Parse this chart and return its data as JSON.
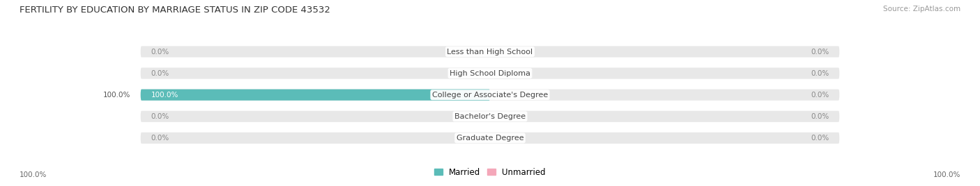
{
  "title": "FERTILITY BY EDUCATION BY MARRIAGE STATUS IN ZIP CODE 43532",
  "source": "Source: ZipAtlas.com",
  "categories": [
    "Less than High School",
    "High School Diploma",
    "College or Associate's Degree",
    "Bachelor's Degree",
    "Graduate Degree"
  ],
  "married_values": [
    0.0,
    0.0,
    100.0,
    0.0,
    0.0
  ],
  "unmarried_values": [
    0.0,
    0.0,
    0.0,
    0.0,
    0.0
  ],
  "married_color": "#5bbcb8",
  "unmarried_color": "#f4a7b9",
  "bar_bg_color": "#e8e8e8",
  "fig_bg_color": "#ffffff",
  "title_fontsize": 9.5,
  "source_fontsize": 7.5,
  "legend_fontsize": 8.5,
  "value_fontsize": 7.5,
  "category_label_fontsize": 8.0
}
